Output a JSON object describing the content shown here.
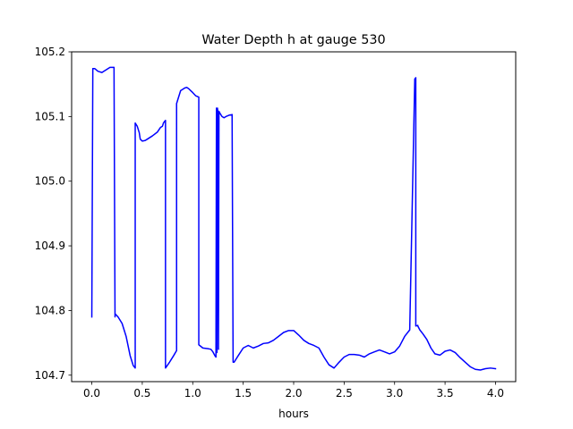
{
  "chart_data": {
    "type": "line",
    "title": "Water Depth h at gauge 530",
    "xlabel": "hours",
    "ylabel": "",
    "xlim": [
      -0.2,
      4.2
    ],
    "ylim": [
      104.69,
      105.2
    ],
    "xticks": [
      0.0,
      0.5,
      1.0,
      1.5,
      2.0,
      2.5,
      3.0,
      3.5,
      4.0
    ],
    "xtick_labels": [
      "0.0",
      "0.5",
      "1.0",
      "1.5",
      "2.0",
      "2.5",
      "3.0",
      "3.5",
      "4.0"
    ],
    "yticks": [
      104.7,
      104.8,
      104.9,
      105.0,
      105.1,
      105.2
    ],
    "ytick_labels": [
      "104.7",
      "104.8",
      "104.9",
      "105.0",
      "105.1",
      "105.2"
    ],
    "grid": false,
    "series": [
      {
        "color": "#0000ff",
        "x": [
          0.0,
          0.01,
          0.03,
          0.06,
          0.1,
          0.14,
          0.18,
          0.22,
          0.23,
          0.23,
          0.26,
          0.3,
          0.34,
          0.38,
          0.41,
          0.43,
          0.43,
          0.45,
          0.47,
          0.48,
          0.5,
          0.53,
          0.55,
          0.6,
          0.65,
          0.68,
          0.7,
          0.71,
          0.72,
          0.73,
          0.73,
          0.77,
          0.81,
          0.84,
          0.84,
          0.86,
          0.88,
          0.9,
          0.92,
          0.94,
          0.96,
          0.98,
          1.0,
          1.03,
          1.06,
          1.06,
          1.1,
          1.15,
          1.18,
          1.2,
          1.22,
          1.23,
          1.235,
          1.24,
          1.245,
          1.25,
          1.255,
          1.26,
          1.27,
          1.29,
          1.31,
          1.33,
          1.36,
          1.39,
          1.4,
          1.41,
          1.45,
          1.5,
          1.55,
          1.6,
          1.65,
          1.7,
          1.75,
          1.8,
          1.85,
          1.9,
          1.95,
          2.0,
          2.05,
          2.1,
          2.15,
          2.2,
          2.25,
          2.3,
          2.35,
          2.4,
          2.45,
          2.5,
          2.55,
          2.6,
          2.65,
          2.7,
          2.75,
          2.8,
          2.85,
          2.9,
          2.95,
          3.0,
          3.05,
          3.1,
          3.15,
          3.2,
          3.21,
          3.21,
          3.23,
          3.23,
          3.25,
          3.28,
          3.32,
          3.36,
          3.4,
          3.45,
          3.5,
          3.55,
          3.6,
          3.65,
          3.7,
          3.75,
          3.8,
          3.85,
          3.9,
          3.95,
          4.0
        ],
        "y": [
          104.79,
          105.174,
          105.174,
          105.17,
          105.168,
          105.172,
          105.176,
          105.176,
          104.79,
          104.795,
          104.79,
          104.78,
          104.76,
          104.73,
          104.715,
          104.711,
          105.09,
          105.085,
          105.075,
          105.065,
          105.062,
          105.063,
          105.065,
          105.07,
          105.076,
          105.083,
          105.085,
          105.09,
          105.092,
          105.094,
          104.711,
          104.72,
          104.73,
          104.738,
          105.12,
          105.13,
          105.14,
          105.142,
          105.144,
          105.145,
          105.143,
          105.14,
          105.137,
          105.132,
          105.13,
          104.747,
          104.742,
          104.741,
          104.74,
          104.736,
          104.73,
          104.728,
          105.113,
          104.735,
          105.113,
          105.105,
          104.74,
          105.108,
          105.105,
          105.1,
          105.098,
          105.1,
          105.102,
          105.103,
          104.72,
          104.72,
          104.73,
          104.742,
          104.746,
          104.742,
          104.745,
          104.749,
          104.75,
          104.754,
          104.76,
          104.766,
          104.769,
          104.769,
          104.762,
          104.754,
          104.749,
          104.746,
          104.742,
          104.728,
          104.716,
          104.711,
          104.72,
          104.728,
          104.732,
          104.732,
          104.731,
          104.728,
          104.733,
          104.736,
          104.739,
          104.736,
          104.733,
          104.736,
          104.745,
          104.76,
          104.77,
          105.158,
          105.16,
          104.776,
          104.777,
          104.776,
          104.77,
          104.764,
          104.755,
          104.742,
          104.733,
          104.731,
          104.737,
          104.739,
          104.735,
          104.727,
          104.72,
          104.713,
          104.709,
          104.708,
          104.71,
          104.711,
          104.71
        ]
      }
    ]
  }
}
